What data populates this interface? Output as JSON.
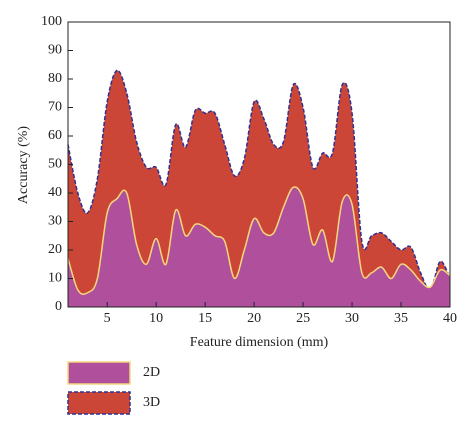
{
  "chart_data": {
    "type": "area",
    "x_label": "Feature dimension (mm)",
    "y_label": "Accuracy (%)",
    "x": [
      1,
      2,
      3,
      4,
      5,
      6,
      7,
      8,
      9,
      10,
      11,
      12,
      13,
      14,
      15,
      16,
      17,
      18,
      19,
      20,
      21,
      22,
      23,
      24,
      25,
      26,
      27,
      28,
      29,
      30,
      31,
      32,
      33,
      34,
      35,
      36,
      37,
      38,
      39,
      40
    ],
    "series": [
      {
        "name": "3D",
        "color": "#cc4638",
        "line_color": "#2e3192",
        "line_style": "dashed",
        "values": [
          57,
          40,
          33,
          45,
          72,
          83,
          75,
          58,
          49,
          49,
          43,
          64,
          56,
          69,
          68,
          68,
          57,
          46,
          52,
          72,
          66,
          57,
          58,
          78,
          70,
          49,
          54,
          54,
          78,
          68,
          23,
          25,
          26,
          23,
          20,
          21,
          12,
          6,
          16,
          10
        ]
      },
      {
        "name": "2D",
        "color": "#b0509c",
        "line_color": "#f5d77c",
        "line_style": "solid",
        "values": [
          17,
          6,
          5,
          10,
          33,
          38,
          40,
          22,
          15,
          24,
          15,
          34,
          25,
          29,
          28,
          25,
          23,
          10,
          20,
          31,
          26,
          26,
          35,
          42,
          38,
          22,
          27,
          16,
          37,
          36,
          12,
          12,
          14,
          10,
          15,
          13,
          9,
          7,
          13,
          11
        ]
      }
    ],
    "xlim": [
      1,
      40
    ],
    "xticks": [
      5,
      10,
      15,
      20,
      25,
      30,
      35,
      40
    ],
    "ylim": [
      0,
      100
    ],
    "yticks": [
      0,
      10,
      20,
      30,
      40,
      50,
      60,
      70,
      80,
      90,
      100
    ],
    "grid": false,
    "legend": "below"
  }
}
